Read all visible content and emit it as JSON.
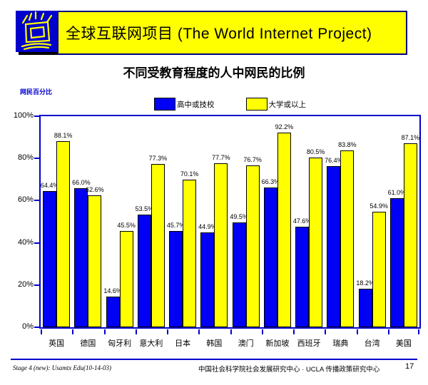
{
  "header": {
    "banner_title": "全球互联网项目 (The World Internet Project)",
    "logo_icon": "shining-monitor-logo"
  },
  "slide": {
    "title": "不同受教育程度的人中网民的比例"
  },
  "chart_data": {
    "type": "bar",
    "title": "不同受教育程度的人中网民的比例",
    "ylabel": "网民百分比",
    "xlabel": "",
    "ylim": [
      0,
      100
    ],
    "yticks": [
      0,
      20,
      40,
      60,
      80,
      100
    ],
    "ytick_suffix": "%",
    "grid": false,
    "legend_position": "top",
    "categories": [
      "英国",
      "德国",
      "匈牙利",
      "意大利",
      "日本",
      "韩国",
      "澳门",
      "新加坡",
      "西班牙",
      "瑞典",
      "台湾",
      "美国"
    ],
    "series": [
      {
        "name": "高中或技校",
        "key": "high-school",
        "color": "#0000F5",
        "values": [
          64.4,
          66.0,
          14.6,
          53.5,
          45.7,
          44.9,
          49.5,
          66.3,
          47.6,
          76.4,
          18.2,
          61.0
        ]
      },
      {
        "name": "大学或以上",
        "key": "college",
        "color": "#FFFF00",
        "values": [
          88.1,
          62.6,
          45.5,
          77.3,
          70.1,
          77.7,
          76.7,
          92.2,
          80.5,
          83.8,
          54.9,
          87.1
        ]
      }
    ],
    "value_label_suffix": "%"
  },
  "footer": {
    "left": "Stage 4 (new): Usamtx Edu(10-14-03)",
    "center": "中国社会科学院社会发展研究中心 · UCLA 传播政策研究中心",
    "page": "17"
  },
  "colors": {
    "banner_bg": "#FFFF00",
    "banner_border": "#000080",
    "logo_bg": "#0000CC",
    "logo_stroke": "#FFFF00",
    "axis": "#0000CC",
    "axis_title": "#0000CC",
    "bar_blue": "#0000F5",
    "bar_yellow": "#FFFF00",
    "text": "#000000"
  }
}
